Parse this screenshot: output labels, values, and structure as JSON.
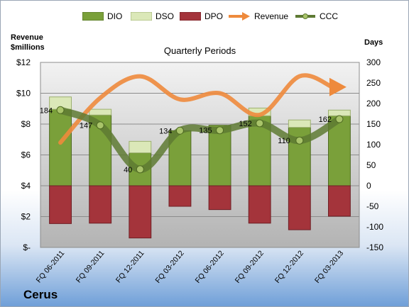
{
  "company": "Cerus",
  "chart_data": {
    "type": "bar",
    "title": "Quarterly Periods",
    "left_axis_title": "Revenue\n$millions",
    "right_axis_title": "Days",
    "categories": [
      "FQ 06-2011",
      "FQ 09-2011",
      "FQ 12-2011",
      "FQ 03-2012",
      "FQ 06-2012",
      "FQ 09-2012",
      "FQ 12-2012",
      "FQ 03-2013"
    ],
    "left_ticks": [
      "$-",
      "$2",
      "$4",
      "$6",
      "$8",
      "$10",
      "$12"
    ],
    "right_ticks": [
      "-150",
      "-100",
      "-50",
      "0",
      "50",
      "100",
      "150",
      "200",
      "250",
      "300"
    ],
    "left_ylim": [
      0,
      12
    ],
    "right_ylim": [
      -150,
      300
    ],
    "legend_position": "top",
    "grid": true,
    "series": [
      {
        "name": "DIO",
        "axis": "days",
        "stacked": true,
        "color": "#7aa03a",
        "values": [
          186,
          172,
          80,
          134,
          147,
          170,
          142,
          170
        ]
      },
      {
        "name": "DSO",
        "axis": "days",
        "stacked": true,
        "color": "#dbe8b8",
        "values": [
          30,
          14,
          28,
          0,
          0,
          19,
          18,
          14
        ]
      },
      {
        "name": "DPO",
        "axis": "days",
        "stacked": true,
        "color": "#a4343b",
        "values": [
          -92,
          -91,
          -127,
          -50,
          -58,
          -91,
          -107,
          -74
        ]
      },
      {
        "name": "Revenue",
        "axis": "revenue",
        "type": "line",
        "color": "#ee8a3c",
        "values": [
          6.8,
          9.7,
          11.1,
          9.6,
          10.0,
          8.6,
          11.1,
          10.4
        ]
      },
      {
        "name": "CCC",
        "axis": "days",
        "type": "line",
        "color": "#5e7a33",
        "values": [
          184,
          147,
          40,
          134,
          135,
          152,
          110,
          162
        ]
      }
    ],
    "ccc_labels": [
      "184",
      "147",
      "40",
      "134",
      "135",
      "152",
      "110",
      "162"
    ]
  }
}
